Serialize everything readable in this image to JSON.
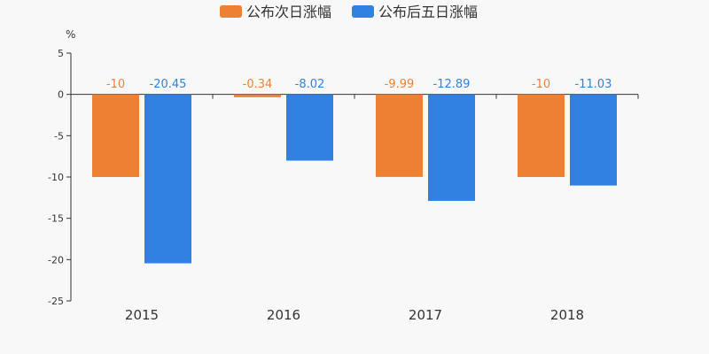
{
  "chart_data": {
    "type": "bar",
    "unit_label": "%",
    "categories": [
      "2015",
      "2016",
      "2017",
      "2018"
    ],
    "series": [
      {
        "name": "公布次日涨幅",
        "color": "#ee8034",
        "values": [
          -10,
          -0.34,
          -9.99,
          -10
        ],
        "value_labels": [
          "-10",
          "-0.34",
          "-9.99",
          "-10"
        ]
      },
      {
        "name": "公布后五日涨幅",
        "color": "#3181e2",
        "values": [
          -20.45,
          -8.02,
          -12.89,
          -11.03
        ],
        "value_labels": [
          "-20.45",
          "-8.02",
          "-12.89",
          "-11.03"
        ]
      }
    ],
    "ylim": [
      -25,
      5
    ],
    "yticks": [
      5,
      0,
      -5,
      -10,
      -15,
      -20,
      -25
    ],
    "grid": false,
    "legend_position": "top-center"
  }
}
